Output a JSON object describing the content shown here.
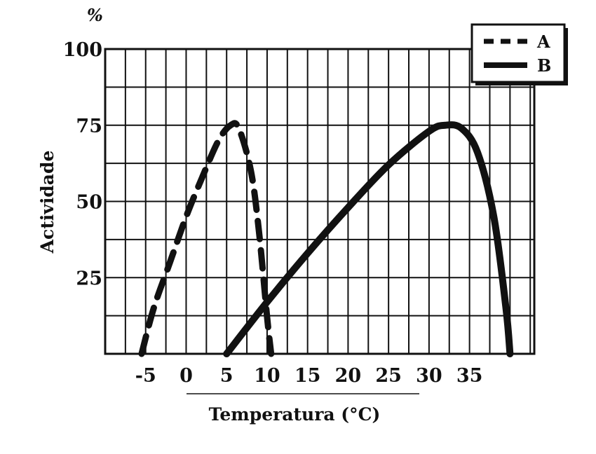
{
  "chart_data": {
    "type": "line",
    "title": "",
    "xlabel": "Temperatura (°C)",
    "ylabel": "Actividade",
    "y_unit": "%",
    "xlim": [
      -10,
      43
    ],
    "ylim": [
      0,
      100
    ],
    "x_ticks": [
      -5,
      0,
      5,
      10,
      15,
      20,
      25,
      30,
      35
    ],
    "x_tick_labels": [
      "-5",
      "0",
      "5",
      "10",
      "15",
      "20",
      "25",
      "30",
      "35"
    ],
    "y_ticks": [
      25,
      50,
      75,
      100
    ],
    "y_tick_labels": [
      "25",
      "50",
      "75",
      "100"
    ],
    "grid": true,
    "legend_position": "top-right",
    "series": [
      {
        "name": "A",
        "style": "dashed",
        "color": "#111111",
        "x": [
          -5.5,
          -4,
          -2,
          0,
          2,
          4,
          5.5,
          6.5,
          8,
          9,
          10,
          10.5
        ],
        "y": [
          0,
          15,
          30,
          45,
          58,
          70,
          75,
          74,
          60,
          40,
          12,
          0
        ]
      },
      {
        "name": "B",
        "style": "solid",
        "color": "#111111",
        "x": [
          5,
          10,
          15,
          20,
          25,
          30,
          32,
          34,
          36,
          38,
          39.5,
          40
        ],
        "y": [
          0,
          17,
          33,
          48,
          62,
          73,
          75,
          74,
          66,
          45,
          15,
          0
        ]
      }
    ]
  }
}
